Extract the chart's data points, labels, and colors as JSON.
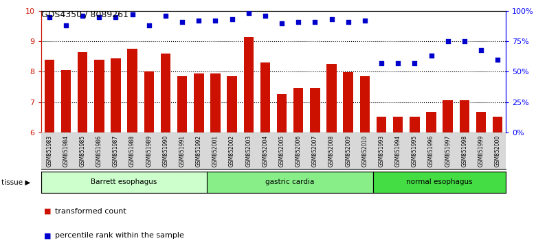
{
  "title": "GDS4350 / 8089261",
  "samples": [
    "GSM851983",
    "GSM851984",
    "GSM851985",
    "GSM851986",
    "GSM851987",
    "GSM851988",
    "GSM851989",
    "GSM851990",
    "GSM851991",
    "GSM851992",
    "GSM852001",
    "GSM852002",
    "GSM852003",
    "GSM852004",
    "GSM852005",
    "GSM852006",
    "GSM852007",
    "GSM852008",
    "GSM852009",
    "GSM852010",
    "GSM851993",
    "GSM851994",
    "GSM851995",
    "GSM851996",
    "GSM851997",
    "GSM851998",
    "GSM851999",
    "GSM852000"
  ],
  "bar_values": [
    8.4,
    8.05,
    8.65,
    8.4,
    8.45,
    8.75,
    8.0,
    8.6,
    7.85,
    7.95,
    7.95,
    7.85,
    9.15,
    8.3,
    7.27,
    7.47,
    7.47,
    8.25,
    7.98,
    7.85,
    6.52,
    6.52,
    6.52,
    6.68,
    7.05,
    7.05,
    6.68,
    6.52
  ],
  "dot_values": [
    95,
    88,
    96,
    95,
    95,
    97,
    88,
    96,
    91,
    92,
    92,
    93,
    98,
    96,
    90,
    91,
    91,
    93,
    91,
    92,
    57,
    57,
    57,
    63,
    75,
    75,
    68,
    60
  ],
  "bar_color": "#cc1100",
  "dot_color": "#0000cc",
  "ylim_left": [
    6,
    10
  ],
  "ylim_right": [
    0,
    100
  ],
  "yticks_left": [
    6,
    7,
    8,
    9,
    10
  ],
  "yticks_right": [
    0,
    25,
    50,
    75,
    100
  ],
  "ytick_labels_right": [
    "0%",
    "25%",
    "50%",
    "75%",
    "100%"
  ],
  "groups": [
    {
      "label": "Barrett esophagus",
      "start": 0,
      "end": 10,
      "color": "#ccffcc"
    },
    {
      "label": "gastric cardia",
      "start": 10,
      "end": 20,
      "color": "#88ee88"
    },
    {
      "label": "normal esophagus",
      "start": 20,
      "end": 28,
      "color": "#44dd44"
    }
  ],
  "tissue_label": "tissue",
  "legend": [
    {
      "label": "transformed count",
      "color": "#cc1100"
    },
    {
      "label": "percentile rank within the sample",
      "color": "#0000cc"
    }
  ],
  "bg_color": "#ffffff",
  "xlabel_color": "#cc1100",
  "bar_width": 0.6,
  "xtick_bg_color": "#d8d8d8"
}
